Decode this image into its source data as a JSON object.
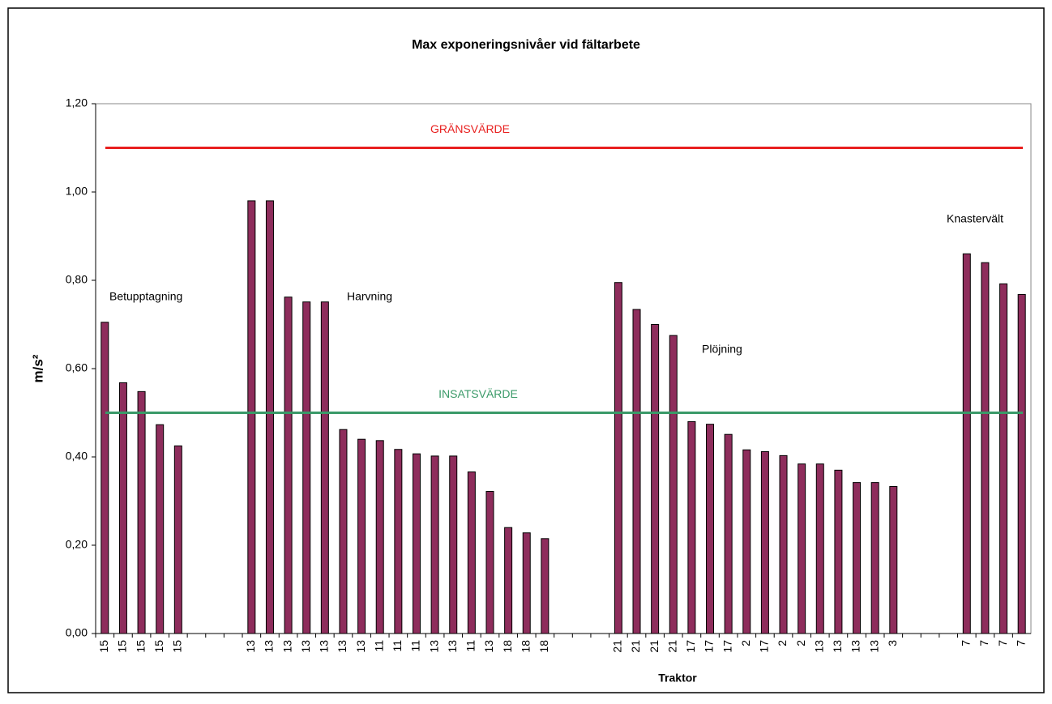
{
  "chart_data": {
    "type": "bar",
    "title": "Max exponeringsnivåer vid fältarbete",
    "x_label": "Traktor",
    "y_label": "m/s²",
    "color": "#8e2d5c",
    "categories": [
      "15",
      "15",
      "15",
      "15",
      "15",
      null,
      null,
      null,
      "13",
      "13",
      "13",
      "13",
      "13",
      "13",
      "13",
      "11",
      "11",
      "11",
      "13",
      "13",
      "11",
      "13",
      "18",
      "18",
      "18",
      null,
      null,
      null,
      "21",
      "21",
      "21",
      "21",
      "17",
      "17",
      "17",
      "2",
      "17",
      "2",
      "2",
      "13",
      "13",
      "13",
      "13",
      "3",
      null,
      null,
      null,
      "7",
      "7",
      "7",
      "7"
    ],
    "values": [
      0.705,
      0.568,
      0.548,
      0.473,
      0.425,
      null,
      null,
      null,
      0.98,
      0.98,
      0.762,
      0.751,
      0.751,
      0.462,
      0.44,
      0.437,
      0.417,
      0.407,
      0.402,
      0.402,
      0.366,
      0.322,
      0.24,
      0.228,
      0.215,
      null,
      null,
      null,
      0.795,
      0.734,
      0.7,
      0.675,
      0.48,
      0.474,
      0.451,
      0.416,
      0.412,
      0.403,
      0.384,
      0.384,
      0.37,
      0.342,
      0.342,
      0.333,
      null,
      null,
      null,
      0.86,
      0.84,
      0.792,
      0.768
    ],
    "ylim": [
      0,
      1.2
    ],
    "yticks": [
      {
        "value": 0,
        "label": "0,00"
      },
      {
        "value": 0.2,
        "label": "0,20"
      },
      {
        "value": 0.4,
        "label": "0,40"
      },
      {
        "value": 0.6,
        "label": "0,60"
      },
      {
        "value": 0.8,
        "label": "0,80"
      },
      {
        "value": 1.0,
        "label": "1,00"
      },
      {
        "value": 1.2,
        "label": "1,20"
      }
    ],
    "reference_lines": [
      {
        "label": "GRÄNSVÄRDE",
        "value": 1.1,
        "color": "#e8201f"
      },
      {
        "label": "INSATSVÄRDE",
        "value": 0.5,
        "color": "#3a9a68"
      }
    ],
    "annotations": [
      "Betupptagning",
      "Harvning",
      "Plöjning",
      "Knastervält"
    ]
  }
}
